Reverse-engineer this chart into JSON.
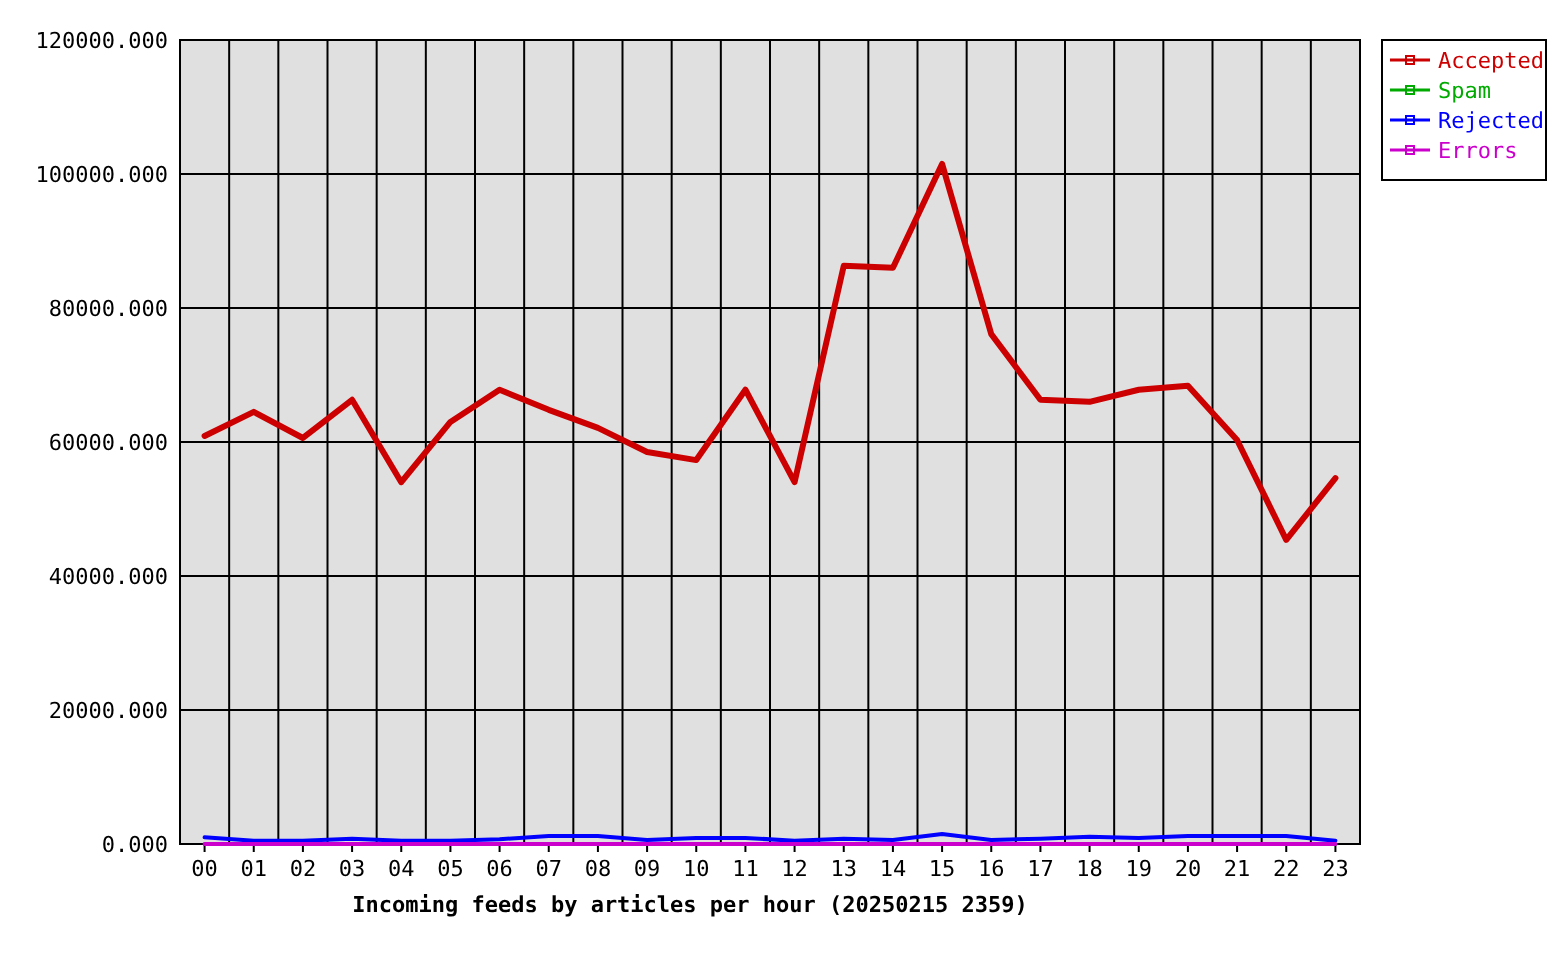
{
  "chart_data": {
    "type": "line",
    "xlabel": "Incoming feeds by articles per hour (20250215 2359)",
    "categories": [
      "00",
      "01",
      "02",
      "03",
      "04",
      "05",
      "06",
      "07",
      "08",
      "09",
      "10",
      "11",
      "12",
      "13",
      "14",
      "15",
      "16",
      "17",
      "18",
      "19",
      "20",
      "21",
      "22",
      "23"
    ],
    "series": [
      {
        "name": "Accepted",
        "color": "#cc0000",
        "values": [
          60900,
          64500,
          60600,
          66300,
          54000,
          63000,
          67800,
          64800,
          62100,
          58500,
          57300,
          67800,
          54000,
          86300,
          86000,
          101500,
          76100,
          66300,
          66000,
          67800,
          68400,
          60300,
          45400,
          54600
        ]
      },
      {
        "name": "Spam",
        "color": "#00aa00",
        "values": [
          null,
          null,
          null,
          null,
          null,
          null,
          null,
          null,
          null,
          null,
          null,
          null,
          null,
          null,
          null,
          null,
          null,
          null,
          null,
          null,
          null,
          null,
          null,
          null
        ]
      },
      {
        "name": "Rejected",
        "color": "#0000ff",
        "values": [
          1000,
          500,
          500,
          800,
          500,
          500,
          700,
          1200,
          1200,
          600,
          900,
          900,
          500,
          800,
          600,
          1500,
          600,
          800,
          1100,
          900,
          1200,
          1200,
          1200,
          500
        ]
      },
      {
        "name": "Errors",
        "color": "#cc00cc",
        "values": [
          0,
          0,
          0,
          0,
          0,
          0,
          0,
          0,
          0,
          0,
          0,
          0,
          0,
          0,
          0,
          0,
          0,
          0,
          0,
          0,
          0,
          0,
          0,
          0
        ]
      }
    ],
    "ylim": [
      0,
      120000
    ],
    "yticks": [
      {
        "value": 0,
        "label": "0.000"
      },
      {
        "value": 20000,
        "label": "20000.000"
      },
      {
        "value": 40000,
        "label": "40000.000"
      },
      {
        "value": 60000,
        "label": "60000.000"
      },
      {
        "value": 80000,
        "label": "80000.000"
      },
      {
        "value": 100000,
        "label": "100000.000"
      },
      {
        "value": 120000,
        "label": "120000.000"
      }
    ],
    "grid": true,
    "legend": "top right",
    "marker": "none",
    "line_style": "solid"
  }
}
